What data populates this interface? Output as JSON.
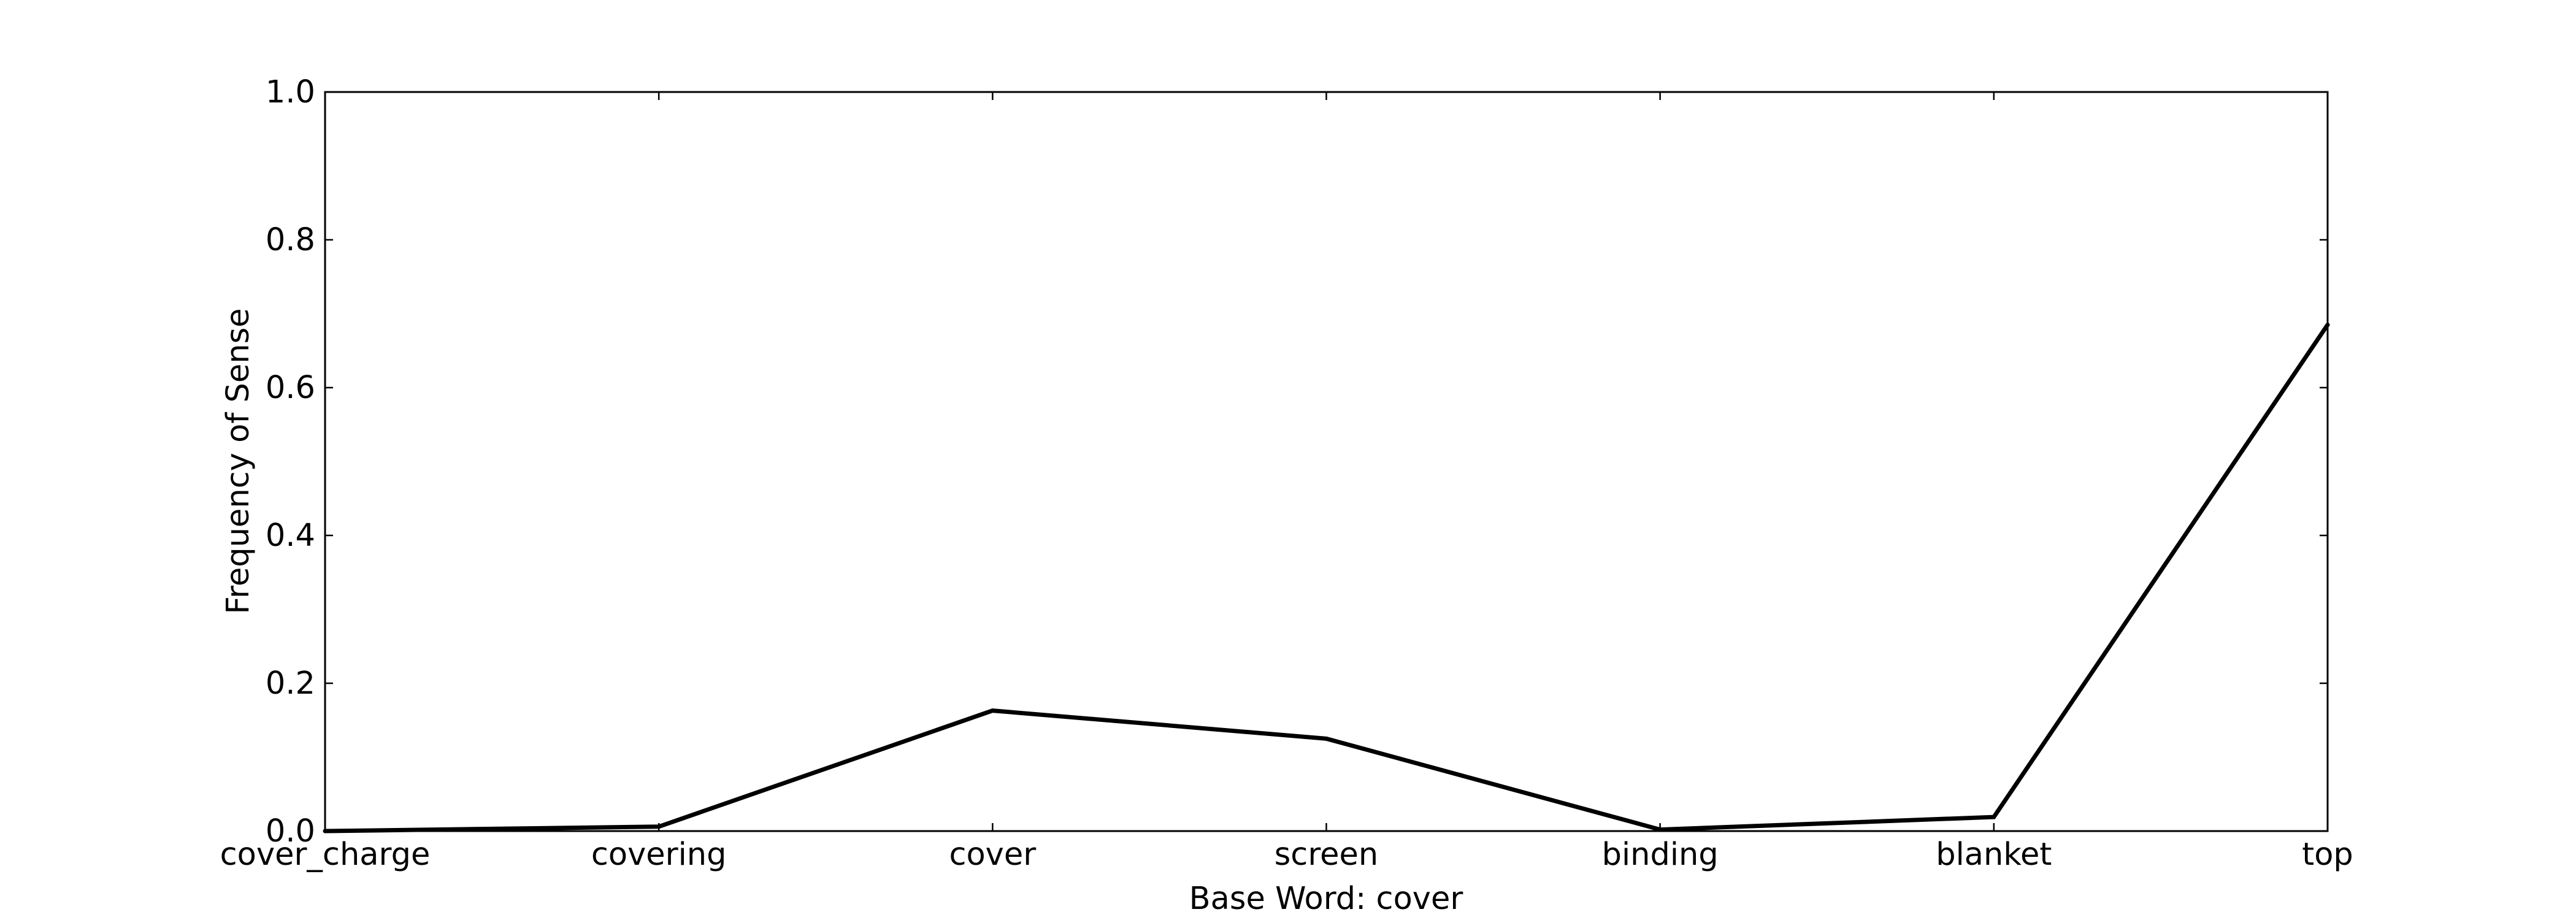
{
  "chart_data": {
    "type": "line",
    "title": "",
    "xlabel": "Base Word: cover",
    "ylabel": "Frequency of Sense",
    "categories": [
      "cover_charge",
      "covering",
      "cover",
      "screen",
      "binding",
      "blanket",
      "top"
    ],
    "series": [
      {
        "values": [
          0.0,
          0.006,
          0.163,
          0.125,
          0.002,
          0.019,
          0.685
        ],
        "color": "#000000"
      }
    ],
    "ylim": [
      0.0,
      1.0
    ],
    "yticks": [
      "0.0",
      "0.2",
      "0.4",
      "0.6",
      "0.8",
      "1.0"
    ],
    "grid": false,
    "legend": "none"
  }
}
